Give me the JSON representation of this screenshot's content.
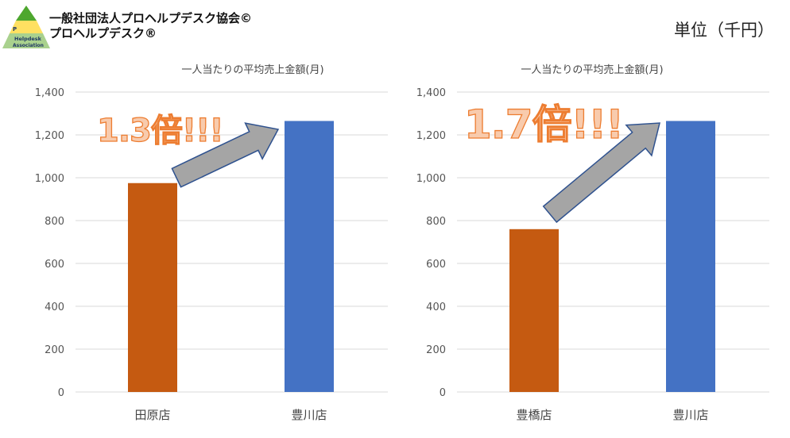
{
  "header": {
    "org_line1": "一般社団法人プロヘルプデスク協会©",
    "org_line2": "プロヘルプデスク®",
    "unit": "単位（千円）",
    "logo_text": [
      "P",
      "Helpdesk",
      "Association"
    ]
  },
  "colors": {
    "orange": "#C55A11",
    "blue": "#4472C4",
    "callout_fill": "#F8CBAD",
    "callout_stroke": "#ED7D31",
    "arrow_fill": "#A5A5A5",
    "arrow_stroke": "#2F528F",
    "grid": "#D9D9D9",
    "logo_top": "#4EA72E",
    "logo_mid": "#FFE061",
    "logo_bottom": "#A9D18E"
  },
  "chart_data": [
    {
      "type": "bar",
      "title": "一人当たりの平均売上金額(月)",
      "categories": [
        "田原店",
        "豊川店"
      ],
      "values": [
        975,
        1265
      ],
      "bar_colors": [
        "#C55A11",
        "#4472C4"
      ],
      "ylim": [
        0,
        1400
      ],
      "yticks": [
        "0",
        "200",
        "400",
        "600",
        "800",
        "1,000",
        "1,200",
        "1,400"
      ],
      "ytick_values": [
        0,
        200,
        400,
        600,
        800,
        1000,
        1200,
        1400
      ],
      "grid": true,
      "annotation": "1.3倍!!!"
    },
    {
      "type": "bar",
      "title": "一人当たりの平均売上金額(月)",
      "categories": [
        "豊橋店",
        "豊川店"
      ],
      "values": [
        760,
        1265
      ],
      "bar_colors": [
        "#C55A11",
        "#4472C4"
      ],
      "ylim": [
        0,
        1400
      ],
      "yticks": [
        "0",
        "200",
        "400",
        "600",
        "800",
        "1,000",
        "1,200",
        "1,400"
      ],
      "ytick_values": [
        0,
        200,
        400,
        600,
        800,
        1000,
        1200,
        1400
      ],
      "grid": true,
      "annotation": "1.7倍!!!"
    }
  ]
}
